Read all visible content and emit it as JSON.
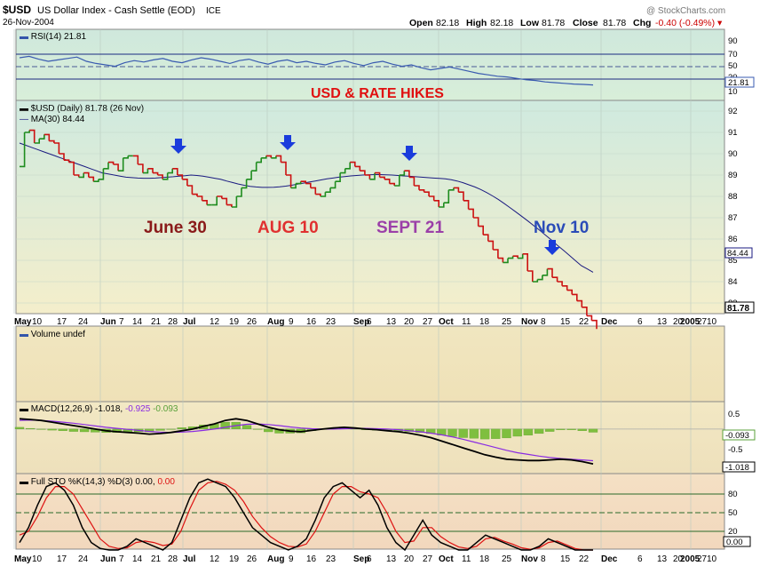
{
  "header": {
    "symbol": "$USD",
    "name": "US Dollar Index - Cash Settle (EOD)",
    "exchange": "ICE",
    "date": "26-Nov-2004",
    "watermark": "@ StockCharts.com",
    "open_label": "Open",
    "open": "82.18",
    "high_label": "High",
    "high": "82.18",
    "low_label": "Low",
    "low": "81.78",
    "close_label": "Close",
    "close": "81.78",
    "chg_label": "Chg",
    "chg": "-0.40 (-0.49%)"
  },
  "panels": {
    "rsi": {
      "legend": "RSI(14) 21.81",
      "value_tag": "21.81",
      "ticks": [
        "90",
        "70",
        "50",
        "30",
        "10"
      ]
    },
    "price": {
      "legend_main": "$USD (Daily) 81.78 (26 Nov)",
      "legend_ma": "MA(30) 84.44",
      "ma_tag": "84.44",
      "close_tag": "81.78",
      "ticks": [
        "92",
        "91",
        "90",
        "89",
        "88",
        "87",
        "86",
        "85",
        "84",
        "83"
      ]
    },
    "volume": {
      "legend": "Volume undef"
    },
    "macd": {
      "legend_a": "MACD(12,26,9) -1.018,",
      "legend_b": "-0.925",
      "legend_c": "-0.093",
      "ticks": [
        "0.5",
        "-0.5"
      ],
      "hist_tag": "-0.093",
      "macd_tag": "-1.018"
    },
    "sto": {
      "legend_a": "Full STO %K(14,3) %D(3) 0.00,",
      "legend_b": "0.00",
      "ticks": [
        "80",
        "50",
        "20"
      ],
      "tag": "0.00"
    }
  },
  "annotations": {
    "title": "USD & RATE HIKES",
    "jun30": "June 30",
    "aug10": "AUG 10",
    "sep21": "SEPT 21",
    "nov10": "Nov 10"
  },
  "x_axis": [
    "May",
    "10",
    "17",
    "24",
    "Jun",
    "7",
    "14",
    "21",
    "28",
    "Jul",
    "12",
    "19",
    "26",
    "Aug",
    "9",
    "16",
    "23",
    "Sep",
    "6",
    "13",
    "20",
    "27",
    "Oct",
    "11",
    "18",
    "25",
    "Nov",
    "8",
    "15",
    "22",
    "Dec",
    "6",
    "13",
    "20",
    "27",
    "2005",
    "10"
  ],
  "colors": {
    "up": "#1e8c1e",
    "down": "#cc1111",
    "ma": "#1a1a80",
    "macd": "#000000",
    "signal": "#8a2be2",
    "hist": "#7fbf3f",
    "stoK": "#000000",
    "stoD": "#dd1111",
    "arrow": "#1a3cdc"
  },
  "chart_data": {
    "type": "line",
    "title": "USD & RATE HIKES",
    "ylim": [
      82.5,
      92.5
    ],
    "close": [
      89.4,
      91.0,
      91.1,
      90.5,
      90.7,
      90.9,
      90.6,
      90.5,
      90.0,
      89.7,
      89.6,
      89.0,
      88.9,
      89.1,
      88.9,
      88.7,
      88.8,
      89.3,
      89.6,
      89.5,
      89.2,
      89.8,
      89.9,
      89.9,
      89.5,
      89.1,
      89.3,
      89.1,
      89.0,
      88.8,
      89.1,
      89.3,
      89.0,
      88.8,
      88.5,
      88.1,
      88.0,
      87.8,
      87.6,
      87.6,
      88.0,
      87.9,
      87.6,
      87.5,
      88.0,
      88.4,
      88.8,
      89.2,
      89.6,
      89.8,
      89.9,
      89.8,
      89.9,
      89.6,
      89.0,
      88.4,
      88.6,
      88.7,
      88.6,
      88.4,
      88.1,
      88.0,
      88.2,
      88.4,
      88.7,
      89.1,
      89.3,
      89.6,
      89.4,
      89.2,
      89.0,
      88.8,
      89.1,
      88.9,
      88.8,
      88.6,
      88.5,
      89.0,
      89.2,
      88.9,
      88.5,
      88.3,
      88.2,
      88.0,
      87.8,
      87.5,
      87.7,
      88.3,
      88.4,
      88.2,
      87.8,
      87.4,
      87.0,
      86.6,
      86.2,
      85.9,
      85.5,
      85.1,
      84.9,
      85.1,
      85.2,
      85.1,
      85.3,
      84.5,
      84.0,
      84.1,
      84.3,
      84.6,
      84.2,
      84.0,
      83.8,
      83.6,
      83.4,
      83.1,
      82.8,
      82.4,
      82.18,
      81.78
    ],
    "ma30": [
      90.5,
      90.4,
      90.3,
      90.2,
      90.1,
      90.0,
      89.9,
      89.8,
      89.7,
      89.6,
      89.5,
      89.4,
      89.3,
      89.2,
      89.1,
      89.05,
      89.0,
      88.95,
      88.9,
      88.88,
      88.86,
      88.85,
      88.85,
      88.86,
      88.88,
      88.9,
      88.92,
      88.95,
      88.97,
      89.0,
      88.98,
      88.95,
      88.9,
      88.85,
      88.8,
      88.72,
      88.65,
      88.58,
      88.52,
      88.47,
      88.44,
      88.42,
      88.42,
      88.43,
      88.45,
      88.48,
      88.52,
      88.57,
      88.62,
      88.67,
      88.72,
      88.77,
      88.82,
      88.86,
      88.9,
      88.93,
      88.96,
      88.98,
      89.0,
      89.01,
      89.02,
      89.02,
      89.01,
      89.0,
      88.98,
      88.96,
      88.94,
      88.92,
      88.9,
      88.88,
      88.86,
      88.84,
      88.82,
      88.78,
      88.72,
      88.64,
      88.54,
      88.44,
      88.32,
      88.18,
      88.02,
      87.85,
      87.66,
      87.46,
      87.26,
      87.05,
      86.84,
      86.62,
      86.4,
      86.17,
      85.94,
      85.7,
      85.47,
      85.23,
      84.99,
      84.75,
      84.6,
      84.44
    ],
    "rsi": [
      60,
      62,
      58,
      55,
      57,
      59,
      61,
      55,
      52,
      50,
      48,
      53,
      56,
      54,
      57,
      59,
      55,
      53,
      57,
      60,
      58,
      55,
      52,
      56,
      58,
      54,
      51,
      55,
      57,
      53,
      55,
      52,
      50,
      54,
      56,
      52,
      49,
      53,
      55,
      51,
      48,
      50,
      46,
      43,
      45,
      47,
      44,
      41,
      38,
      36,
      34,
      33,
      31,
      29,
      28,
      26,
      25,
      24,
      23,
      22.5,
      21.81
    ],
    "macd": [
      0.3,
      0.28,
      0.25,
      0.2,
      0.15,
      0.1,
      0.05,
      0.0,
      -0.05,
      -0.08,
      -0.1,
      -0.12,
      -0.15,
      -0.13,
      -0.1,
      -0.05,
      0.0,
      0.08,
      0.15,
      0.25,
      0.3,
      0.25,
      0.15,
      0.05,
      -0.02,
      -0.06,
      -0.08,
      -0.04,
      0.0,
      0.03,
      0.05,
      0.03,
      0.0,
      -0.02,
      -0.05,
      -0.08,
      -0.12,
      -0.18,
      -0.25,
      -0.35,
      -0.45,
      -0.55,
      -0.65,
      -0.75,
      -0.82,
      -0.88,
      -0.9,
      -0.92,
      -0.92,
      -0.9,
      -0.88,
      -0.9,
      -0.95,
      -1.018
    ],
    "signal": [
      0.25,
      0.26,
      0.25,
      0.23,
      0.2,
      0.17,
      0.13,
      0.09,
      0.05,
      0.02,
      -0.01,
      -0.04,
      -0.07,
      -0.09,
      -0.1,
      -0.09,
      -0.07,
      -0.04,
      0.0,
      0.05,
      0.1,
      0.14,
      0.15,
      0.13,
      0.1,
      0.06,
      0.03,
      0.01,
      0.0,
      0.0,
      0.01,
      0.02,
      0.02,
      0.01,
      0.0,
      -0.02,
      -0.05,
      -0.08,
      -0.12,
      -0.17,
      -0.23,
      -0.3,
      -0.38,
      -0.46,
      -0.54,
      -0.62,
      -0.69,
      -0.74,
      -0.79,
      -0.83,
      -0.86,
      -0.88,
      -0.9,
      -0.925
    ],
    "stoK": [
      10,
      30,
      60,
      85,
      90,
      80,
      60,
      30,
      10,
      2,
      0,
      0,
      5,
      15,
      10,
      5,
      0,
      10,
      40,
      70,
      90,
      95,
      90,
      85,
      70,
      50,
      30,
      20,
      10,
      5,
      0,
      5,
      15,
      40,
      70,
      85,
      90,
      80,
      70,
      80,
      60,
      30,
      10,
      0,
      20,
      40,
      20,
      10,
      5,
      0,
      0,
      10,
      20,
      15,
      10,
      5,
      0,
      0,
      5,
      15,
      10,
      5,
      0,
      0,
      0
    ],
    "stoD": [
      20,
      25,
      45,
      70,
      85,
      85,
      75,
      55,
      35,
      15,
      5,
      2,
      3,
      10,
      12,
      10,
      6,
      8,
      25,
      55,
      80,
      90,
      92,
      88,
      80,
      65,
      45,
      30,
      18,
      10,
      5,
      4,
      8,
      25,
      50,
      75,
      85,
      85,
      78,
      75,
      70,
      50,
      25,
      10,
      12,
      30,
      30,
      18,
      10,
      4,
      2,
      5,
      15,
      17,
      12,
      8,
      3,
      1,
      3,
      10,
      12,
      7,
      2,
      0,
      0
    ],
    "macd_range": [
      -1.3,
      0.8
    ],
    "rsi_range": [
      0,
      100
    ],
    "sto_range": [
      0,
      100
    ]
  }
}
